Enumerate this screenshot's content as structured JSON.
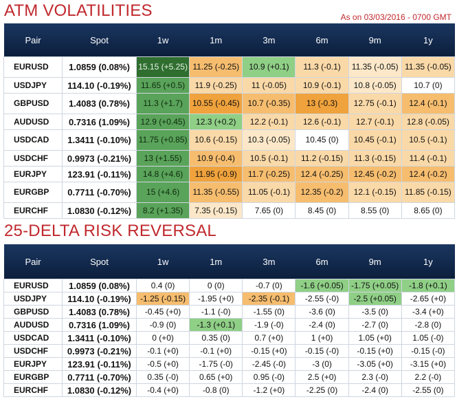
{
  "title_vol": "ATM VOLATILITIES",
  "as_of": "As on 03/03/2016 - 0700 GMT",
  "title_rr": "25-DELTA RISK REVERSAL",
  "headers": [
    "Pair",
    "Spot",
    "1w",
    "1m",
    "3m",
    "6m",
    "9m",
    "1y"
  ],
  "vol_rows": [
    {
      "pair": "EURUSD",
      "spot": "1.0859 (0.08%)",
      "w1": "15.15 (+5.25)",
      "m1": "11.25 (-0.25)",
      "m3": "10.9 (+0.1)",
      "m6": "11.3 (-0.1)",
      "m9": "11.35 (-0.05)",
      "y1": "11.35 (-0.05)"
    },
    {
      "pair": "USDJPY",
      "spot": "114.10 (-0.19%)",
      "w1": "11.65 (+0.5)",
      "m1": "11.9 (-0.25)",
      "m3": "11 (-0.05)",
      "m6": "10.9 (-0.1)",
      "m9": "10.8 (-0.05)",
      "y1": "10.7 (0)"
    },
    {
      "pair": "GBPUSD",
      "spot": "1.4083 (0.78%)",
      "w1": "11.3 (+1.7)",
      "m1": "10.55 (-0.45)",
      "m3": "10.7 (-0.35)",
      "m6": "13 (-0.3)",
      "m9": "12.75 (-0.1)",
      "y1": "12.4 (-0.1)"
    },
    {
      "pair": "AUDUSD",
      "spot": "0.7316 (1.09%)",
      "w1": "12.9 (+0.45)",
      "m1": "12.3 (+0.2)",
      "m3": "12.2 (-0.1)",
      "m6": "12.6 (-0.1)",
      "m9": "12.7 (-0.1)",
      "y1": "12.8 (-0.05)"
    },
    {
      "pair": "USDCAD",
      "spot": "1.3411 (-0.10%)",
      "w1": "11.75 (+0.85)",
      "m1": "10.6 (-0.15)",
      "m3": "10.3 (-0.05)",
      "m6": "10.45 (0)",
      "m9": "10.45 (-0.1)",
      "y1": "10.5 (-0.1)"
    },
    {
      "pair": "USDCHF",
      "spot": "0.9973 (-0.21%)",
      "w1": "13 (+1.55)",
      "m1": "10.9 (-0.4)",
      "m3": "10.5 (-0.1)",
      "m6": "11.2 (-0.15)",
      "m9": "11.3 (-0.15)",
      "y1": "11.4 (-0.1)"
    },
    {
      "pair": "EURJPY",
      "spot": "123.91 (-0.11%)",
      "w1": "14.8 (+4.6)",
      "m1": "11.95 (-0.9)",
      "m3": "11.7 (-0.25)",
      "m6": "12.4 (-0.25)",
      "m9": "12.45 (-0.2)",
      "y1": "12.4 (-0.2)"
    },
    {
      "pair": "EURGBP",
      "spot": "0.7711 (-0.70%)",
      "w1": "15 (+4.6)",
      "m1": "11.35 (-0.55)",
      "m3": "11.05 (-0.1)",
      "m6": "12.35 (-0.2)",
      "m9": "12.1 (-0.15)",
      "y1": "11.85 (-0.15)"
    },
    {
      "pair": "EURCHF",
      "spot": "1.0830 (-0.12%)",
      "w1": "8.2 (+1.35)",
      "m1": "7.35 (-0.15)",
      "m3": "7.65 (0)",
      "m6": "8.45 (0)",
      "m9": "8.55 (0)",
      "y1": "8.65 (0)"
    }
  ],
  "rr_rows": [
    {
      "pair": "EURUSD",
      "spot": "1.0859 (0.08%)",
      "w1": "0.4 (0)",
      "m1": "0 (0)",
      "m3": "-0.7 (0)",
      "m6": "-1.6 (+0.05)",
      "m9": "-1.75 (+0.05)",
      "y1": "-1.8 (+0.1)"
    },
    {
      "pair": "USDJPY",
      "spot": "114.10 (-0.19%)",
      "w1": "-1.25 (-0.15)",
      "m1": "-1.95 (+0)",
      "m3": "-2.35 (-0.1)",
      "m6": "-2.55 (-0)",
      "m9": "-2.5 (+0.05)",
      "y1": "-2.65 (+0)"
    },
    {
      "pair": "GBPUSD",
      "spot": "1.4083 (0.78%)",
      "w1": "-0.45 (+0)",
      "m1": "-1.1 (-0)",
      "m3": "-1.55 (0)",
      "m6": "-3.6 (0)",
      "m9": "-3.5 (0)",
      "y1": "-3.4 (+0)"
    },
    {
      "pair": "AUDUSD",
      "spot": "0.7316 (1.09%)",
      "w1": "-0.9 (0)",
      "m1": "-1.3 (+0.1)",
      "m3": "-1.9 (-0)",
      "m6": "-2.4 (0)",
      "m9": "-2.7 (0)",
      "y1": "-2.8 (0)"
    },
    {
      "pair": "USDCAD",
      "spot": "1.3411 (-0.10%)",
      "w1": "0 (+0)",
      "m1": "0.35 (0)",
      "m3": "0.7 (+0)",
      "m6": "1 (+0)",
      "m9": "1.05 (+0)",
      "y1": "1.05 (-0)"
    },
    {
      "pair": "USDCHF",
      "spot": "0.9973 (-0.21%)",
      "w1": "-0.1 (+0)",
      "m1": "-0.1 (+0)",
      "m3": "-0.15 (+0)",
      "m6": "-0.15 (-0)",
      "m9": "-0.15 (+0)",
      "y1": "-0.15 (-0)"
    },
    {
      "pair": "EURJPY",
      "spot": "123.91 (-0.11%)",
      "w1": "-0.5 (+0)",
      "m1": "-1.75 (-0)",
      "m3": "-2.45 (-0)",
      "m6": "-3 (0)",
      "m9": "-3.05 (+0)",
      "y1": "-3.15 (+0)"
    },
    {
      "pair": "EURGBP",
      "spot": "0.7711 (-0.70%)",
      "w1": "0.35 (-0)",
      "m1": "0.65 (+0)",
      "m3": "0.95 (-0)",
      "m6": "2.5 (+0)",
      "m9": "2.3 (-0)",
      "y1": "2.2 (-0)"
    },
    {
      "pair": "EURCHF",
      "spot": "1.0830 (-0.12%)",
      "w1": "-0.4 (+0)",
      "m1": "-0.8 (0)",
      "m3": "-1.2 (+0)",
      "m6": "-2.25 (0)",
      "m9": "-2.4 (0)",
      "y1": "-2.55 (0)"
    }
  ],
  "colors": {
    "title": "#c0282d",
    "header_bg": "#0c1f3c"
  }
}
